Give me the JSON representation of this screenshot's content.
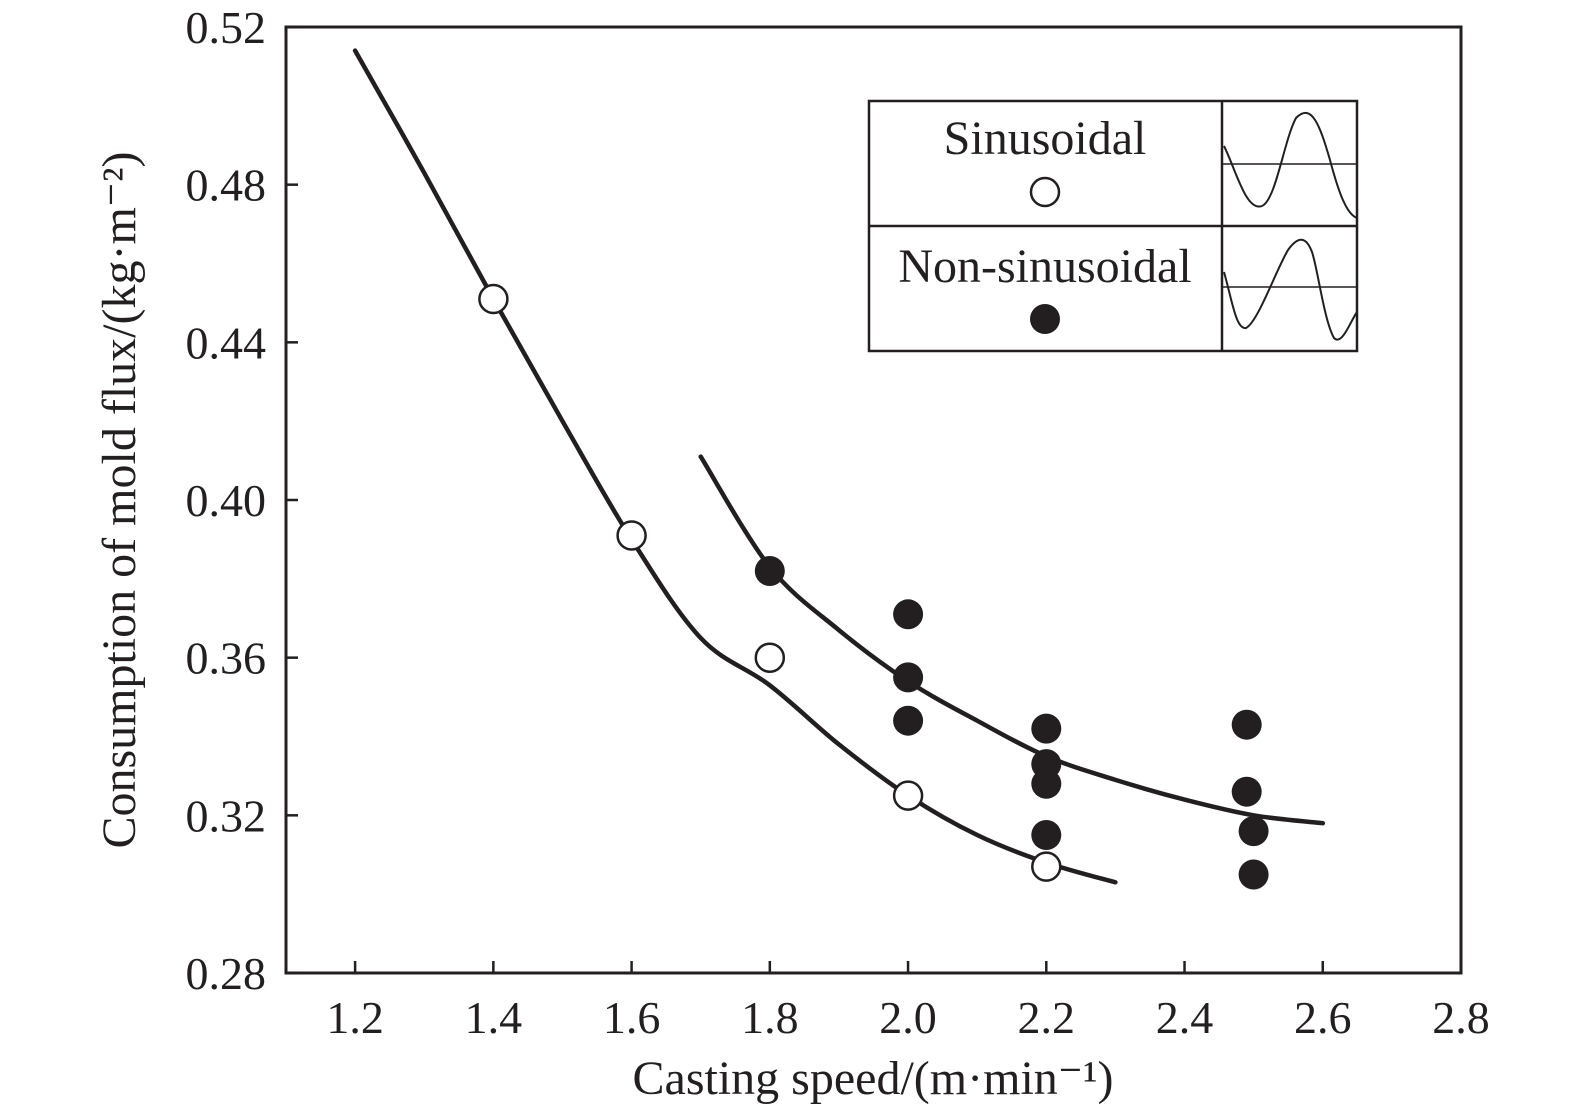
{
  "chart_data": {
    "type": "scatter",
    "xlabel": "Casting speed/(m·min⁻¹)",
    "ylabel": "Consumption of mold flux/(kg·m⁻²)",
    "xlim": [
      1.1,
      2.8
    ],
    "ylim": [
      0.28,
      0.52
    ],
    "xticks": [
      "1.2",
      "1.4",
      "1.6",
      "1.8",
      "2.0",
      "2.2",
      "2.4",
      "2.6",
      "2.8"
    ],
    "yticks": [
      "0.28",
      "0.32",
      "0.36",
      "0.40",
      "0.44",
      "0.48",
      "0.52"
    ],
    "grid": false,
    "legend_position": "top-right",
    "series": [
      {
        "name": "Sinusoidal",
        "marker": "open-circle",
        "points": [
          [
            1.4,
            0.451
          ],
          [
            1.6,
            0.391
          ],
          [
            1.8,
            0.36
          ],
          [
            2.0,
            0.325
          ],
          [
            2.2,
            0.307
          ]
        ],
        "fit_curve": [
          [
            1.2,
            0.514
          ],
          [
            1.3,
            0.483
          ],
          [
            1.4,
            0.451
          ],
          [
            1.5,
            0.42
          ],
          [
            1.6,
            0.39
          ],
          [
            1.7,
            0.365
          ],
          [
            1.8,
            0.353
          ],
          [
            1.9,
            0.338
          ],
          [
            2.0,
            0.325
          ],
          [
            2.1,
            0.315
          ],
          [
            2.2,
            0.308
          ],
          [
            2.3,
            0.303
          ]
        ]
      },
      {
        "name": "Non-sinusoidal",
        "marker": "filled-circle",
        "points": [
          [
            1.8,
            0.382
          ],
          [
            2.0,
            0.371
          ],
          [
            2.0,
            0.355
          ],
          [
            2.0,
            0.344
          ],
          [
            2.2,
            0.342
          ],
          [
            2.2,
            0.333
          ],
          [
            2.2,
            0.328
          ],
          [
            2.2,
            0.315
          ],
          [
            2.49,
            0.343
          ],
          [
            2.49,
            0.326
          ],
          [
            2.5,
            0.316
          ],
          [
            2.5,
            0.305
          ]
        ],
        "fit_curve": [
          [
            1.7,
            0.411
          ],
          [
            1.8,
            0.383
          ],
          [
            1.9,
            0.367
          ],
          [
            2.0,
            0.354
          ],
          [
            2.1,
            0.344
          ],
          [
            2.2,
            0.335
          ],
          [
            2.3,
            0.329
          ],
          [
            2.4,
            0.324
          ],
          [
            2.5,
            0.32
          ],
          [
            2.6,
            0.318
          ]
        ]
      }
    ]
  }
}
